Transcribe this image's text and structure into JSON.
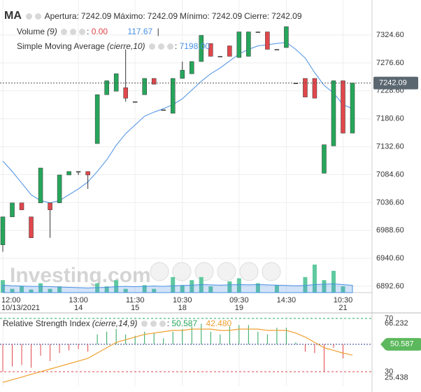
{
  "chart_data": [
    {
      "type": "candlestick",
      "title": "MA",
      "header": [
        {
          "label": "Apertura:",
          "value": 7242.09
        },
        {
          "label": "Máximo:",
          "value": 7242.09
        },
        {
          "label": "Mínimo:",
          "value": 7242.09
        },
        {
          "label": "Cierre:",
          "value": 7242.09
        }
      ],
      "volume_legend": {
        "name": "Volume",
        "params": "(9)",
        "values": [
          0,
          117.67
        ],
        "value_labels": [
          "0.00",
          "117.67"
        ]
      },
      "sma_legend": {
        "name": "Simple Moving Average",
        "params": "(cierre,10)",
        "value_label": "7198.00"
      },
      "watermark": "Investing.com",
      "categories": [
        "12:00",
        null,
        null,
        null,
        null,
        null,
        null,
        null,
        "13:00",
        null,
        null,
        null,
        null,
        null,
        "11:30",
        null,
        null,
        null,
        null,
        "10:30",
        null,
        null,
        null,
        null,
        null,
        "09:30",
        null,
        null,
        null,
        null,
        "14:30",
        null,
        null,
        null,
        null,
        null,
        "10:30",
        null
      ],
      "dates": [
        "10/13/2021",
        null,
        null,
        null,
        null,
        null,
        null,
        null,
        "14",
        null,
        null,
        null,
        null,
        null,
        "15",
        null,
        null,
        null,
        null,
        "18",
        null,
        null,
        null,
        null,
        null,
        "19",
        null,
        null,
        null,
        null,
        null,
        null,
        null,
        null,
        null,
        null,
        "21",
        null
      ],
      "open": [
        6964,
        7012,
        7036,
        7012,
        7036,
        7036,
        7036,
        7084,
        7090,
        7090,
        7138,
        7222,
        7228,
        7234,
        7210,
        7222,
        7250,
        7196,
        7190,
        7250,
        7258,
        7279,
        7310,
        7288,
        7306,
        7286,
        7288,
        7330,
        7330,
        7300,
        7303,
        7242,
        7250,
        7250,
        7087,
        7134,
        7246,
        7156
      ],
      "high": [
        7012,
        7036,
        7036,
        7012,
        7096,
        7036,
        7084,
        7090,
        7090,
        7090,
        7222,
        7246,
        7258,
        7300,
        7210,
        7250,
        7250,
        7196,
        7250,
        7279,
        7279,
        7324,
        7310,
        7288,
        7306,
        7330,
        7330,
        7330,
        7330,
        7300,
        7339,
        7242,
        7250,
        7250,
        7136,
        7246,
        7246,
        7242.09
      ],
      "low": [
        6952,
        7012,
        7024,
        6976,
        7036,
        6976,
        7036,
        7084,
        7084,
        7060,
        7138,
        7222,
        7228,
        7210,
        7210,
        7222,
        7240,
        7196,
        7190,
        7250,
        7258,
        7279,
        7288,
        7288,
        7288,
        7286,
        7288,
        7330,
        7300,
        7300,
        7303,
        7242,
        7218,
        7216,
        7087,
        7134,
        7156,
        7156
      ],
      "close": [
        7012,
        7036,
        7024,
        6976,
        7096,
        7024,
        7084,
        7090,
        7090,
        7084,
        7222,
        7246,
        7258,
        7216,
        7210,
        7250,
        7240,
        7196,
        7250,
        7264,
        7279,
        7324,
        7288,
        7288,
        7288,
        7330,
        7330,
        7330,
        7300,
        7300,
        7339,
        7242,
        7218,
        7216,
        7136,
        7246,
        7156,
        7242.09
      ],
      "volume": [
        200,
        60,
        100,
        50,
        150,
        60,
        100,
        0,
        0,
        0,
        150,
        100,
        200,
        60,
        0,
        120,
        60,
        0,
        250,
        120,
        200,
        250,
        100,
        0,
        180,
        230,
        0,
        150,
        0,
        120,
        0,
        0,
        250,
        450,
        200,
        350,
        100,
        0
      ],
      "volume_ma": [
        120,
        110,
        105,
        100,
        100,
        95,
        90,
        85,
        80,
        75,
        80,
        85,
        95,
        100,
        95,
        100,
        105,
        100,
        110,
        115,
        120,
        130,
        125,
        120,
        125,
        130,
        125,
        130,
        125,
        120,
        115,
        110,
        115,
        130,
        135,
        140,
        130,
        117.67
      ],
      "sma": [
        7108,
        7090,
        7070,
        7050,
        7040,
        7036,
        7040,
        7050,
        7060,
        7072,
        7090,
        7110,
        7135,
        7155,
        7170,
        7185,
        7192,
        7198,
        7205,
        7215,
        7230,
        7245,
        7258,
        7268,
        7280,
        7292,
        7300,
        7306,
        7308,
        7310,
        7312,
        7300,
        7285,
        7260,
        7238,
        7225,
        7205,
        7198
      ],
      "colors": {
        "up": "#26a65b",
        "down": "#e0474c",
        "volume": "#5fc9a0",
        "volume_ma": "#4a90e2",
        "sma": "#4a90e2"
      },
      "ylim": [
        6881.8,
        7384.8
      ],
      "yticks": [
        {
          "value": 6892.6,
          "label": "6892.60"
        },
        {
          "value": 6940.6,
          "label": "6940.60"
        },
        {
          "value": 6988.6,
          "label": "6988.60"
        },
        {
          "value": 7036.6,
          "label": "7036.60"
        },
        {
          "value": 7084.6,
          "label": "7084.60"
        },
        {
          "value": 7132.6,
          "label": "7132.60"
        },
        {
          "value": 7180.6,
          "label": "7180.60"
        },
        {
          "value": 7228.6,
          "label": "7228.60"
        },
        {
          "value": 7276.6,
          "label": "7276.60"
        },
        {
          "value": 7324.6,
          "label": "7324.60"
        }
      ],
      "grid": true
    },
    {
      "type": "bar",
      "title": "Relative Strength Index",
      "params": "(cierre,14,9)",
      "series": [
        {
          "name": "RSI",
          "color": "#26a65b",
          "down_color": "#e0474c",
          "values": [
            30,
            34,
            35,
            33,
            42,
            38,
            44,
            46,
            47,
            45,
            58,
            60,
            62,
            58,
            57,
            60,
            59,
            55,
            60,
            62,
            64,
            66,
            60,
            58,
            64,
            65,
            65,
            60,
            58,
            63,
            63,
            52,
            45,
            44,
            30,
            48,
            40,
            50.587
          ]
        },
        {
          "name": "Signal",
          "color": "#f0a030",
          "values": [
            22,
            24,
            26,
            28,
            30,
            32,
            34,
            36,
            38,
            40,
            44,
            48,
            52,
            54,
            56,
            58,
            59,
            60,
            61,
            61,
            62,
            62,
            62,
            61,
            61,
            62,
            62,
            62,
            61,
            61,
            61,
            59,
            56,
            52,
            48,
            46,
            44,
            42.48
          ],
          "value_label": "42.480"
        }
      ],
      "ylim": [
        19,
        71.5
      ],
      "yticks": [
        70,
        66.232,
        30,
        25.438
      ]
    }
  ]
}
